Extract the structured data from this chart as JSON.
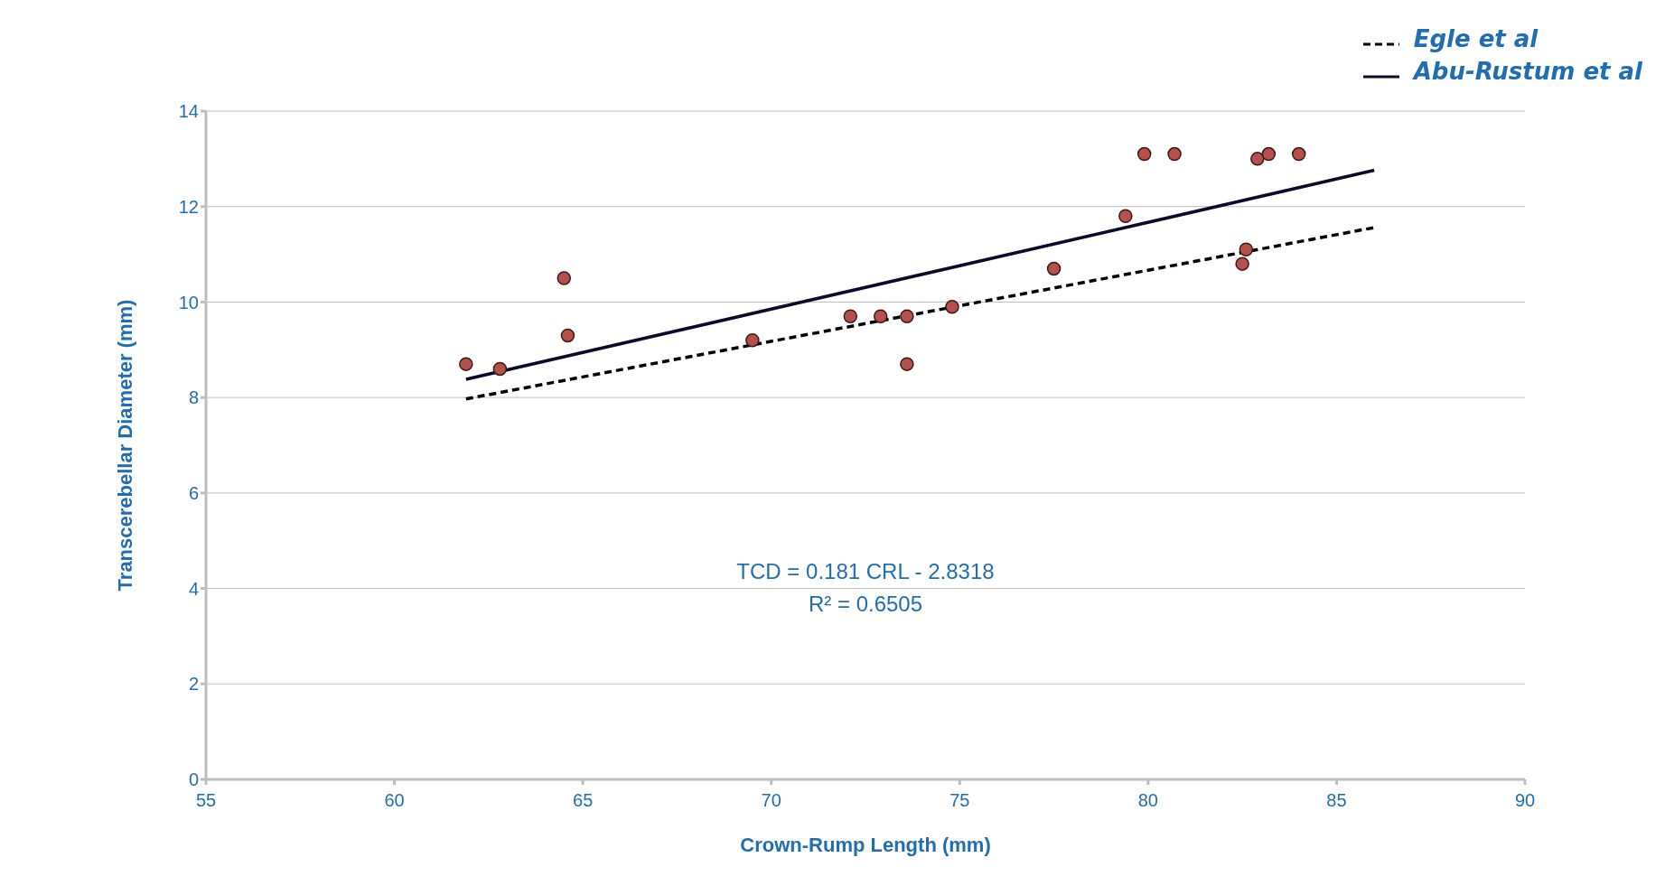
{
  "chart_data": {
    "type": "scatter",
    "xlabel": "Crown-Rump Length (mm)",
    "ylabel": "Transcerebellar Diameter (mm)",
    "xlim": [
      55,
      90
    ],
    "xticks": [
      55,
      60,
      65,
      70,
      75,
      80,
      85,
      90
    ],
    "ylim": [
      0,
      14
    ],
    "yticks": [
      0,
      2,
      4,
      6,
      8,
      10,
      12,
      14
    ],
    "grid": "y",
    "legend": "top right",
    "annotations": [
      "TCD = 0.181 CRL - 2.8318",
      "R² = 0.6505"
    ],
    "series": [
      {
        "marker": "circle",
        "color": "#b5504a",
        "x": [
          61.9,
          62.8,
          64.5,
          64.6,
          69.5,
          72.1,
          72.9,
          73.6,
          73.6,
          74.8,
          77.5,
          79.4,
          79.9,
          80.7,
          82.5,
          82.6,
          82.9,
          83.2,
          84.0
        ],
        "values": [
          8.7,
          8.6,
          10.5,
          9.3,
          9.2,
          9.7,
          9.7,
          9.7,
          8.7,
          9.9,
          10.7,
          11.8,
          13.1,
          13.1,
          10.8,
          11.1,
          13.0,
          13.1,
          13.1
        ]
      },
      {
        "type": "line",
        "marker": "none",
        "name": "Egle et al",
        "color": "#000000",
        "line_style": "dashed",
        "x": [
          61.9,
          86.0
        ],
        "values": [
          7.97,
          11.56
        ]
      },
      {
        "type": "line",
        "marker": "none",
        "name": "Abu-Rustum et al",
        "color": "#0a0a2e",
        "line_style": "solid",
        "x": [
          61.9,
          86.0
        ],
        "values": [
          8.38,
          12.76
        ]
      }
    ]
  }
}
